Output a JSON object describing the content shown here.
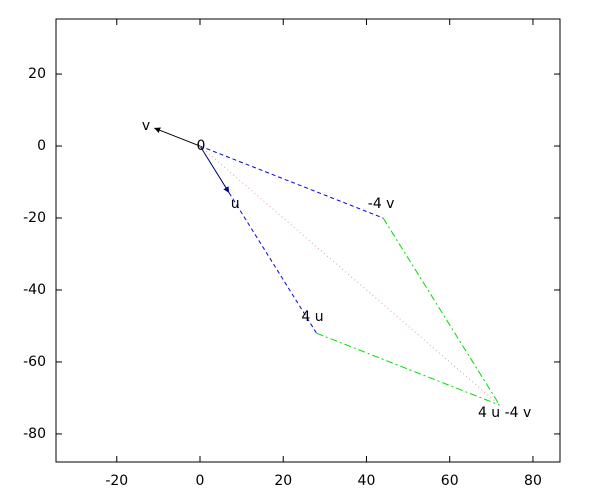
{
  "chart_data": {
    "type": "vector",
    "xlim": [
      -34.6,
      86.5
    ],
    "ylim": [
      -87.8,
      35.3
    ],
    "xticks": [
      -20,
      0,
      20,
      40,
      60,
      80
    ],
    "yticks": [
      -80,
      -60,
      -40,
      -20,
      0,
      20
    ],
    "series": [
      {
        "color": "#000000",
        "style": "solid",
        "arrow": true,
        "x": [
          0,
          -11
        ],
        "y": [
          0,
          5
        ]
      },
      {
        "color": "#000080",
        "style": "solid",
        "arrow": true,
        "x": [
          0,
          7
        ],
        "y": [
          0,
          -13
        ]
      },
      {
        "color": "#0000ff",
        "style": "dashed",
        "arrow": false,
        "x": [
          0,
          44
        ],
        "y": [
          0,
          -20
        ]
      },
      {
        "color": "#0000ff",
        "style": "dashed",
        "arrow": false,
        "x": [
          7,
          28
        ],
        "y": [
          -13,
          -52
        ]
      },
      {
        "color": "#00dd00",
        "style": "dashdot",
        "arrow": false,
        "x": [
          44,
          72
        ],
        "y": [
          -20,
          -72
        ]
      },
      {
        "color": "#00dd00",
        "style": "dashdot",
        "arrow": false,
        "x": [
          28,
          72
        ],
        "y": [
          -52,
          -72
        ]
      },
      {
        "color": "#e0a0a0",
        "style": "dotted",
        "arrow": false,
        "x": [
          0,
          72
        ],
        "y": [
          0,
          -72
        ]
      }
    ],
    "annotations": [
      {
        "text": "v",
        "x": -11,
        "y": 5
      },
      {
        "text": "0",
        "x": 0,
        "y": 0
      },
      {
        "text": "u",
        "x": 7,
        "y": -13
      },
      {
        "text": "-4 v",
        "x": 44,
        "y": -20
      },
      {
        "text": "4 u",
        "x": 28,
        "y": -52
      },
      {
        "text": "4 u -4 v",
        "x": 72,
        "y": -72
      }
    ]
  }
}
